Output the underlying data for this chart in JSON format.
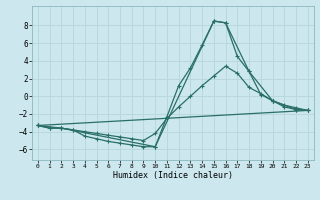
{
  "xlabel": "Humidex (Indice chaleur)",
  "background_color": "#cce8ee",
  "grid_color": "#b8d8de",
  "line_color": "#2a6e68",
  "xlim": [
    -0.5,
    23.5
  ],
  "ylim": [
    -7.2,
    10.2
  ],
  "yticks": [
    -6,
    -4,
    -2,
    0,
    2,
    4,
    6,
    8
  ],
  "xticks": [
    0,
    1,
    2,
    3,
    4,
    5,
    6,
    7,
    8,
    9,
    10,
    11,
    12,
    13,
    14,
    15,
    16,
    17,
    18,
    19,
    20,
    21,
    22,
    23
  ],
  "line1_x": [
    0,
    1,
    2,
    3,
    4,
    5,
    6,
    7,
    8,
    9,
    10,
    11,
    12,
    13,
    14,
    15,
    16,
    17,
    18,
    19,
    20,
    21,
    22,
    23
  ],
  "line1_y": [
    -3.3,
    -3.6,
    -3.6,
    -3.8,
    -4.5,
    -4.8,
    -5.1,
    -5.3,
    -5.5,
    -5.7,
    -5.7,
    -2.3,
    1.2,
    3.2,
    5.8,
    8.5,
    8.3,
    4.5,
    2.8,
    0.2,
    -0.5,
    -1.2,
    -1.5,
    -1.6
  ],
  "line2_x": [
    0,
    1,
    2,
    3,
    4,
    5,
    6,
    7,
    8,
    9,
    10,
    11,
    12,
    13,
    14,
    15,
    16,
    17,
    18,
    19,
    20,
    21,
    22,
    23
  ],
  "line2_y": [
    -3.3,
    -3.6,
    -3.6,
    -3.8,
    -4.0,
    -4.2,
    -4.4,
    -4.6,
    -4.8,
    -5.0,
    -4.2,
    -2.5,
    -1.2,
    0.0,
    1.2,
    2.3,
    3.4,
    2.6,
    1.0,
    0.3,
    -0.5,
    -1.0,
    -1.3,
    -1.6
  ],
  "line3_x": [
    0,
    23
  ],
  "line3_y": [
    -3.3,
    -1.6
  ],
  "line4_x": [
    0,
    2,
    10,
    15,
    16,
    18,
    20,
    22,
    23
  ],
  "line4_y": [
    -3.3,
    -3.6,
    -5.7,
    8.5,
    8.3,
    2.8,
    -0.5,
    -1.5,
    -1.6
  ]
}
